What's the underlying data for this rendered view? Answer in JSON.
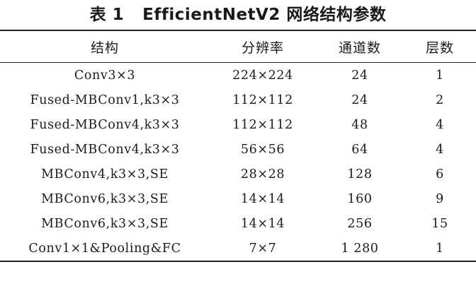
{
  "caption": {
    "label": "表 1",
    "title": "EfficientNetV2 网络结构参数"
  },
  "table": {
    "headers": [
      "结构",
      "分辨率",
      "通道数",
      "层数"
    ],
    "rows": [
      [
        "Conv3×3",
        "224×224",
        "24",
        "1"
      ],
      [
        "Fused-MBConv1,k3×3",
        "112×112",
        "24",
        "2"
      ],
      [
        "Fused-MBConv4,k3×3",
        "112×112",
        "48",
        "4"
      ],
      [
        "Fused-MBConv4,k3×3",
        "56×56",
        "64",
        "4"
      ],
      [
        "MBConv4,k3×3,SE",
        "28×28",
        "128",
        "6"
      ],
      [
        "MBConv6,k3×3,SE",
        "14×14",
        "160",
        "9"
      ],
      [
        "MBConv6,k3×3,SE",
        "14×14",
        "256",
        "15"
      ],
      [
        "Conv1×1&Pooling&FC",
        "7×7",
        "1 280",
        "1"
      ]
    ]
  }
}
